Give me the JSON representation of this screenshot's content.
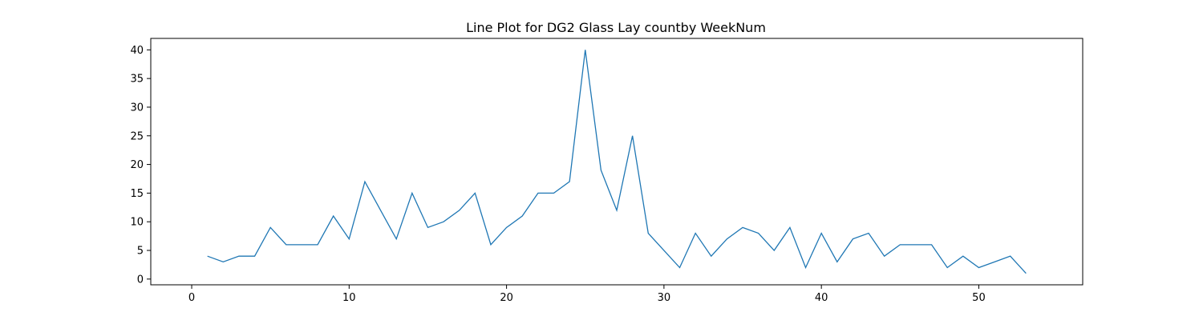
{
  "chart_data": {
    "type": "line",
    "title": "Line Plot for DG2 Glass Lay countby WeekNum",
    "xlabel": "",
    "ylabel": "",
    "xlim": [
      -2.6,
      56.6
    ],
    "ylim": [
      -1.0,
      42.0
    ],
    "x_ticks": [
      0,
      10,
      20,
      30,
      40,
      50
    ],
    "y_ticks": [
      0,
      5,
      10,
      15,
      20,
      25,
      30,
      35,
      40
    ],
    "grid": false,
    "legend": "none",
    "series": [
      {
        "color": "#1f77b4",
        "x": [
          1,
          2,
          3,
          4,
          5,
          6,
          7,
          8,
          9,
          10,
          11,
          12,
          13,
          14,
          15,
          16,
          17,
          18,
          19,
          20,
          21,
          22,
          23,
          24,
          25,
          26,
          27,
          28,
          29,
          30,
          31,
          32,
          33,
          34,
          35,
          36,
          37,
          38,
          39,
          40,
          41,
          42,
          43,
          44,
          45,
          46,
          47,
          48,
          49,
          50,
          51,
          52,
          53
        ],
        "y": [
          4,
          3,
          4,
          4,
          9,
          6,
          6,
          6,
          11,
          7,
          17,
          12,
          7,
          15,
          9,
          10,
          12,
          15,
          6,
          9,
          11,
          15,
          15,
          17,
          40,
          19,
          12,
          25,
          8,
          5,
          2,
          8,
          4,
          7,
          9,
          8,
          5,
          9,
          2,
          8,
          3,
          7,
          8,
          4,
          6,
          6,
          6,
          2,
          4,
          2,
          3,
          4,
          1
        ]
      }
    ]
  }
}
